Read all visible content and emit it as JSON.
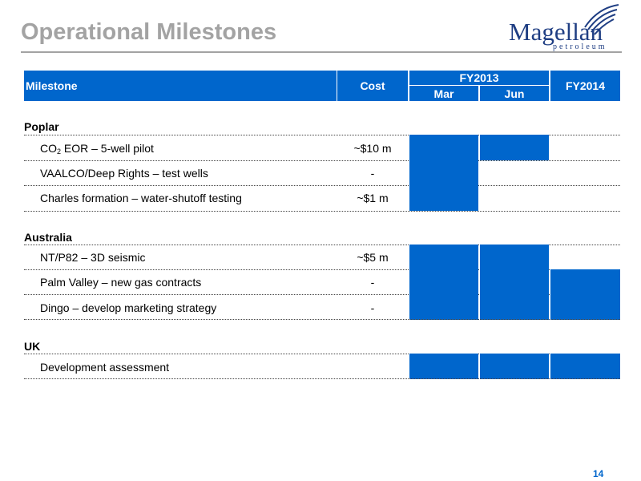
{
  "title": "Operational Milestones",
  "logo": {
    "word": "Magellan",
    "sub": "petroleum"
  },
  "header": {
    "milestone": "Milestone",
    "cost": "Cost",
    "fy2013": "FY2013",
    "mar": "Mar",
    "jun": "Jun",
    "fy2014": "FY2014"
  },
  "sections": {
    "poplar": "Poplar",
    "australia": "Australia",
    "uk": "UK"
  },
  "rows": [
    {
      "pre": "CO",
      "sub": "2",
      "post": " EOR – 5-well pilot",
      "cost": "~$10 m",
      "mar": true,
      "jun": true,
      "fy2014": false
    },
    {
      "label": "VAALCO/Deep Rights – test wells",
      "cost": "-",
      "mar": true,
      "jun": false,
      "fy2014": false
    },
    {
      "label": "Charles formation – water-shutoff testing",
      "cost": "~$1 m",
      "mar": true,
      "jun": false,
      "fy2014": false
    },
    {
      "label": "NT/P82 – 3D seismic",
      "cost": "~$5 m",
      "mar": true,
      "jun": true,
      "fy2014": false
    },
    {
      "label": "Palm Valley – new gas contracts",
      "cost": "-",
      "mar": true,
      "jun": true,
      "fy2014": true
    },
    {
      "label": "Dingo – develop marketing strategy",
      "cost": "-",
      "mar": true,
      "jun": true,
      "fy2014": true
    },
    {
      "label": "Development assessment",
      "cost": "",
      "mar": true,
      "jun": true,
      "fy2014": true
    }
  ],
  "colors": {
    "accent": "#0066cc",
    "title": "#a3a3a3",
    "logo": "#1f3e83"
  },
  "page_number": "14"
}
